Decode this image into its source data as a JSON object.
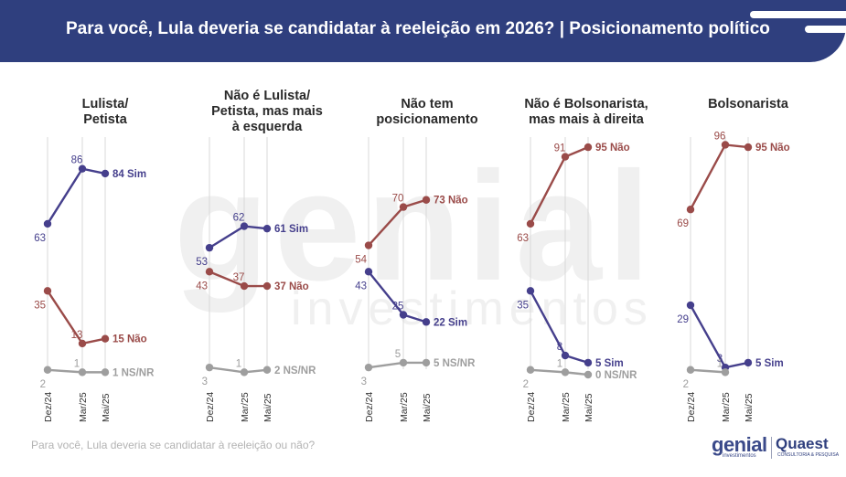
{
  "header": {
    "title": "Para você, Lula deveria se candidatar à reeleição em 2026? | Posicionamento político"
  },
  "footnote": "Para você, Lula deveria se candidatar à reeleição ou não?",
  "watermark": {
    "main": "genial",
    "sub": "investimentos"
  },
  "logos": {
    "genial": "genial",
    "genial_sub": "investimentos",
    "quaest": "Quaest",
    "quaest_sub": "CONSULTORIA & PESQUISA"
  },
  "colors": {
    "sim": "#453f8c",
    "nao": "#9a4b49",
    "nsnr": "#9e9e9e",
    "header": "#2f3f7e"
  },
  "chart_data": {
    "type": "line",
    "categories": [
      "Dez/24",
      "Mar/25",
      "Mai/25"
    ],
    "ylim": [
      0,
      100
    ],
    "panels": [
      {
        "title": "Lulista/\nPetista",
        "series": [
          {
            "name": "Sim",
            "values": [
              63,
              86,
              84
            ],
            "color": "sim"
          },
          {
            "name": "Não",
            "values": [
              35,
              13,
              15
            ],
            "color": "nao"
          },
          {
            "name": "NS/NR",
            "values": [
              2,
              1,
              1
            ],
            "color": "nsnr"
          }
        ]
      },
      {
        "title": "Não é Lulista/\nPetista, mas mais\nà esquerda",
        "series": [
          {
            "name": "Sim",
            "values": [
              53,
              62,
              61
            ],
            "color": "sim"
          },
          {
            "name": "Não",
            "values": [
              43,
              37,
              37
            ],
            "color": "nao"
          },
          {
            "name": "NS/NR",
            "values": [
              3,
              1,
              2
            ],
            "color": "nsnr"
          }
        ]
      },
      {
        "title": "Não tem\nposicionamento",
        "series": [
          {
            "name": "Sim",
            "values": [
              43,
              25,
              22
            ],
            "color": "sim"
          },
          {
            "name": "Não",
            "values": [
              54,
              70,
              73
            ],
            "color": "nao"
          },
          {
            "name": "NS/NR",
            "values": [
              3,
              5,
              5
            ],
            "color": "nsnr"
          }
        ]
      },
      {
        "title": "Não é Bolsonarista,\nmas mais à direita",
        "series": [
          {
            "name": "Sim",
            "values": [
              35,
              8,
              5
            ],
            "color": "sim"
          },
          {
            "name": "Não",
            "values": [
              63,
              91,
              95
            ],
            "color": "nao"
          },
          {
            "name": "NS/NR",
            "values": [
              2,
              1,
              0
            ],
            "color": "nsnr"
          }
        ]
      },
      {
        "title": "Bolsonarista",
        "series": [
          {
            "name": "Sim",
            "values": [
              29,
              3,
              5
            ],
            "color": "sim"
          },
          {
            "name": "Não",
            "values": [
              69,
              96,
              95
            ],
            "color": "nao"
          },
          {
            "name": "NS/NR",
            "values": [
              2,
              1,
              null
            ],
            "color": "nsnr"
          }
        ]
      }
    ]
  }
}
